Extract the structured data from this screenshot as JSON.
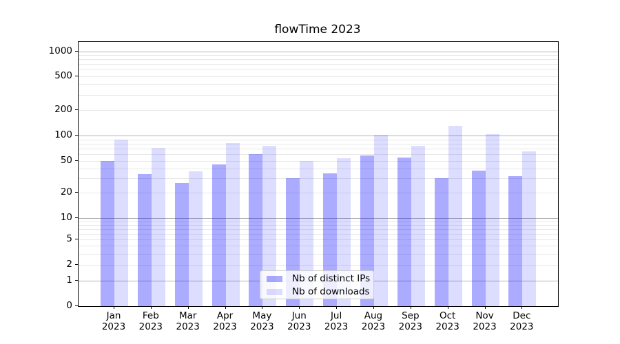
{
  "title": "flowTime 2023",
  "chart_data": {
    "type": "bar",
    "title": "flowTime 2023",
    "categories": [
      "Jan 2023",
      "Feb 2023",
      "Mar 2023",
      "Apr 2023",
      "May 2023",
      "Jun 2023",
      "Jul 2023",
      "Aug 2023",
      "Sep 2023",
      "Oct 2023",
      "Nov 2023",
      "Dec 2023"
    ],
    "series": [
      {
        "name": "Nb of distinct IPs",
        "color": "#0000ff",
        "alpha": 0.33,
        "values": [
          50,
          34,
          26,
          45,
          60,
          30,
          35,
          58,
          55,
          30,
          38,
          32
        ]
      },
      {
        "name": "Nb of downloads",
        "color": "#0000ff",
        "alpha": 0.135,
        "values": [
          89,
          72,
          37,
          81,
          75,
          50,
          54,
          101,
          76,
          130,
          103,
          65
        ]
      }
    ],
    "yscale": "symlog",
    "yticks": [
      0,
      1,
      2,
      5,
      10,
      20,
      50,
      100,
      200,
      500,
      1000
    ],
    "ylim": [
      0,
      1000
    ],
    "xlabel": "",
    "ylabel": "",
    "grid": true,
    "legend_position": "lower center",
    "grid_major_color": "#b0b0b0",
    "grid_minor_color": "#e8e8e8"
  }
}
